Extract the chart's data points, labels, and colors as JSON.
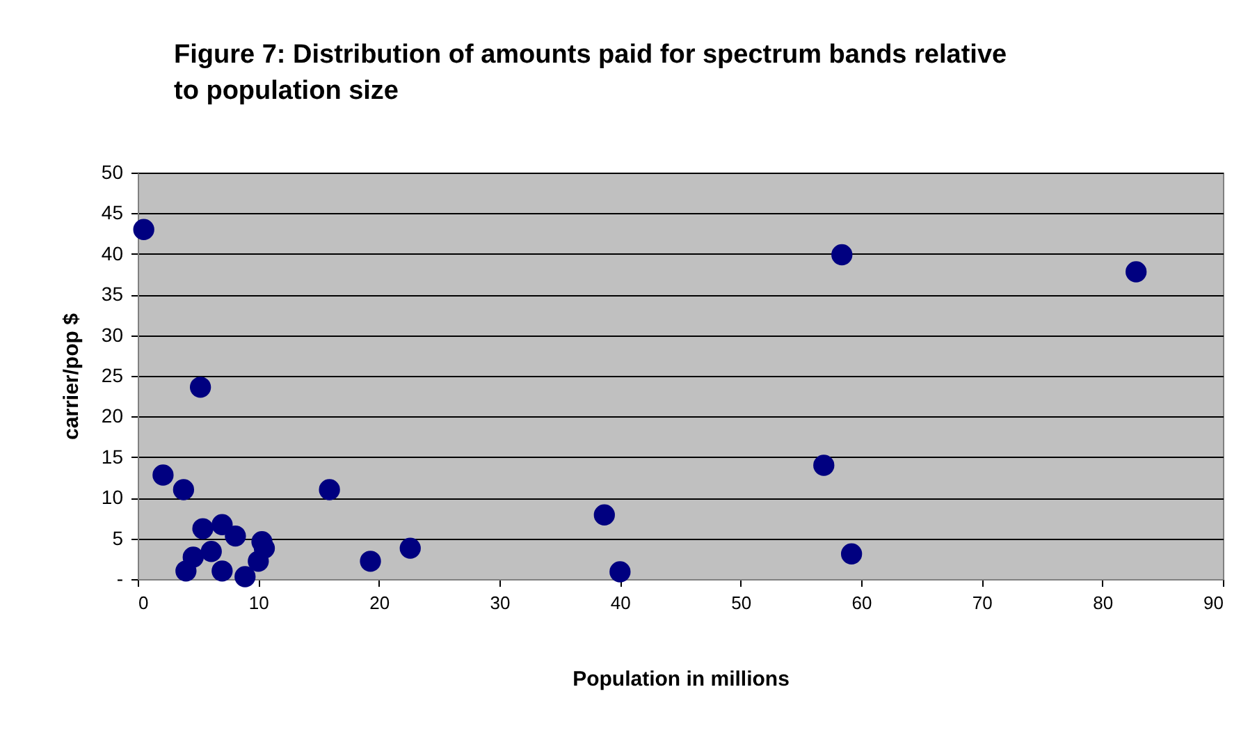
{
  "chart_data": {
    "type": "scatter",
    "title": "Figure 7: Distribution of amounts paid for spectrum bands relative\nto population size",
    "xlabel": "Population in millions",
    "ylabel": "carrier/pop $",
    "x": [
      0.5,
      2.1,
      3.8,
      5.2,
      5.4,
      7.0,
      8.1,
      6.1,
      4.6,
      4.0,
      7.0,
      8.9,
      10.3,
      10.5,
      10.0,
      15.9,
      19.3,
      22.6,
      38.7,
      40.0,
      58.4,
      56.9,
      59.2,
      82.8
    ],
    "series": [
      {
        "color": "#000080",
        "values": [
          43,
          12.8,
          11,
          23.6,
          6.2,
          6.7,
          5.3,
          3.4,
          2.7,
          1.0,
          1.0,
          0.3,
          4.6,
          3.8,
          2.2,
          11,
          2.2,
          3.8,
          7.9,
          0.9,
          39.9,
          14,
          3.1,
          37.8
        ]
      }
    ],
    "xlim": [
      0,
      90
    ],
    "xticks": [
      0,
      10,
      20,
      30,
      40,
      50,
      60,
      70,
      80,
      90
    ],
    "ylim": [
      0,
      50
    ],
    "yticks": [
      {
        "value": 0,
        "label": "-"
      },
      5,
      10,
      15,
      20,
      25,
      30,
      35,
      40,
      45,
      50
    ],
    "grid": "y",
    "marker": "circle"
  }
}
